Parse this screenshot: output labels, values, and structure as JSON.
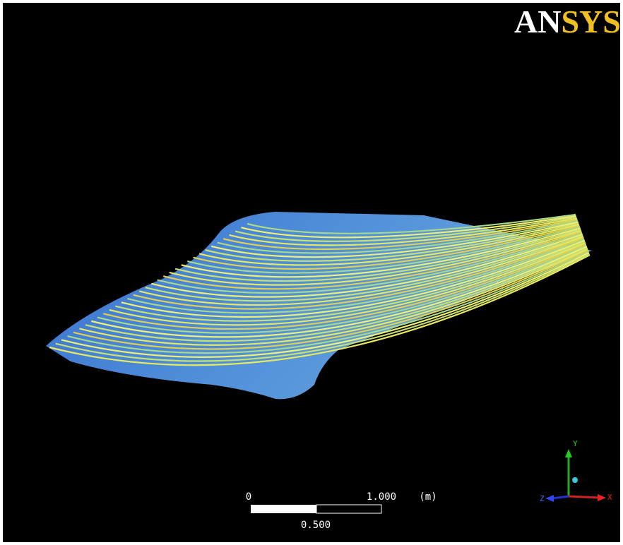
{
  "logo": [
    "AN",
    "SYS"
  ],
  "scale_bar": {
    "start_label": "0",
    "end_label": "1.000",
    "unit": "(m)",
    "mid_label": "0.500"
  },
  "axes": {
    "y": "Y",
    "x": "X",
    "z": "Z"
  }
}
